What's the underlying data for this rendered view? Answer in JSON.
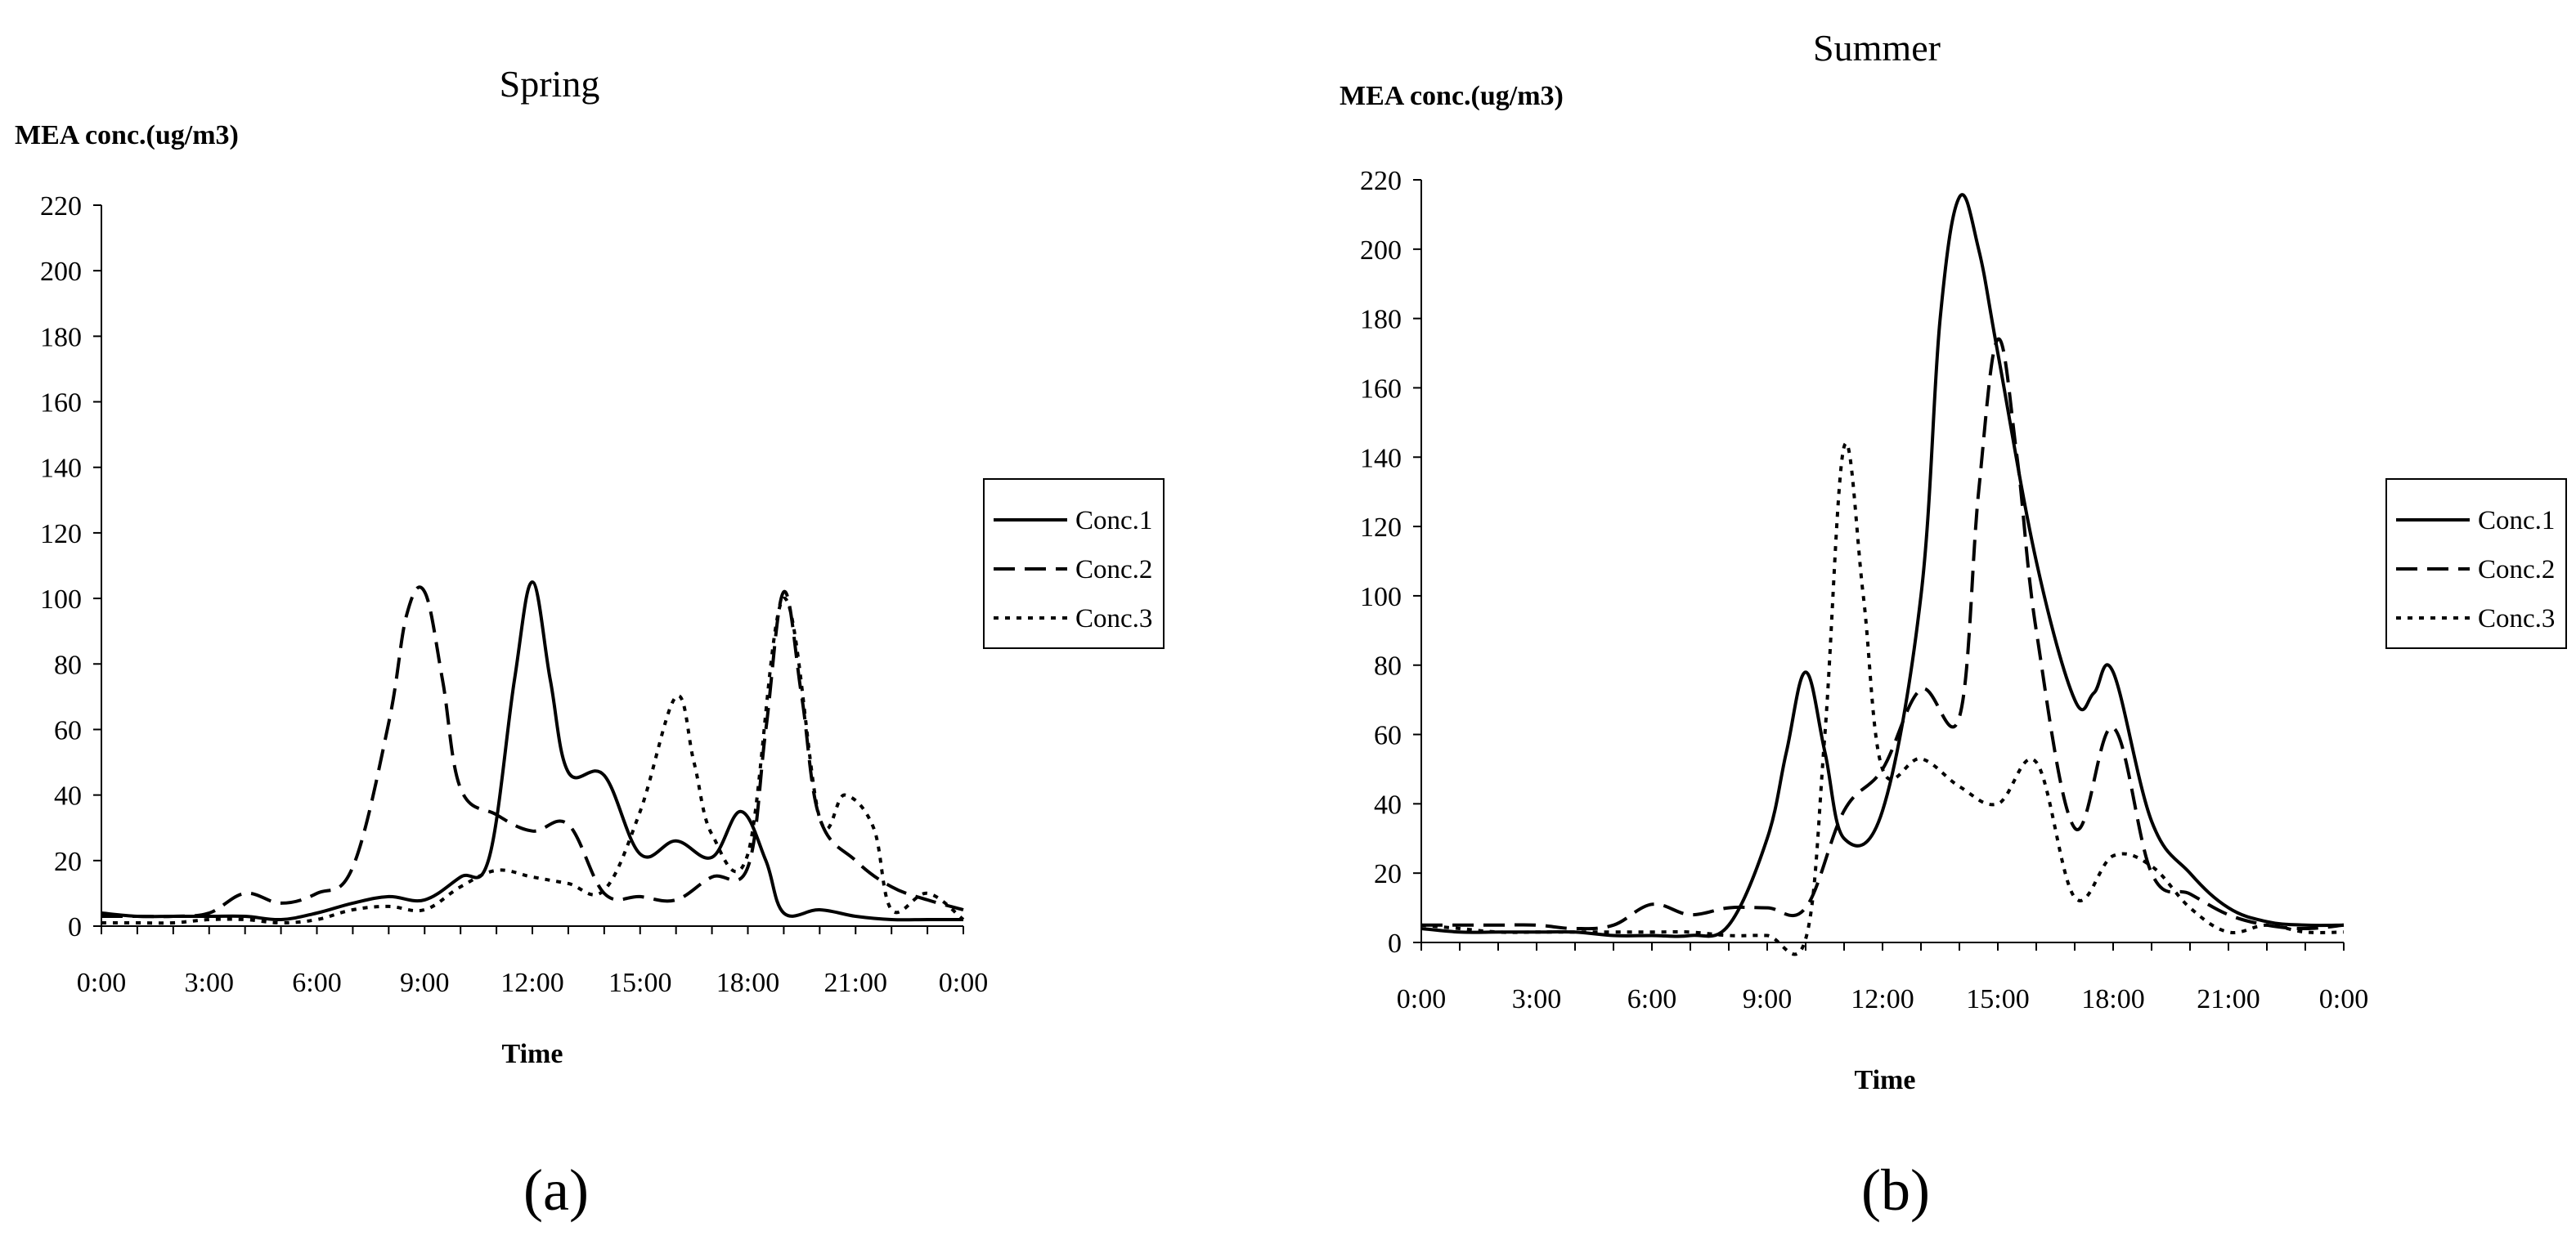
{
  "chart_data": [
    {
      "type": "line",
      "panel_label": "(a)",
      "title": "Spring",
      "ylabel": "MEA conc.(ug/m3)",
      "xlabel": "Time",
      "ylim": [
        0,
        220
      ],
      "y_ticks": [
        0,
        20,
        40,
        60,
        80,
        100,
        120,
        140,
        160,
        180,
        200,
        220
      ],
      "x_range": [
        0,
        24
      ],
      "x_ticks": [
        {
          "value": 0,
          "label": "0:00"
        },
        {
          "value": 3,
          "label": "3:00"
        },
        {
          "value": 6,
          "label": "6:00"
        },
        {
          "value": 9,
          "label": "9:00"
        },
        {
          "value": 12,
          "label": "12:00"
        },
        {
          "value": 15,
          "label": "15:00"
        },
        {
          "value": 18,
          "label": "18:00"
        },
        {
          "value": 21,
          "label": "21:00"
        },
        {
          "value": 24,
          "label": "0:00"
        }
      ],
      "legend": "right",
      "series": [
        {
          "name": "Conc.1",
          "style": "solid",
          "x": [
            0,
            1,
            2,
            3,
            4,
            5,
            6,
            7,
            8,
            9,
            10,
            10.8,
            11.5,
            12,
            12.5,
            13,
            14,
            15,
            16,
            17,
            17.8,
            18.5,
            19,
            20,
            21,
            22,
            23,
            24
          ],
          "y": [
            4,
            3,
            3,
            3,
            3,
            2,
            4,
            7,
            9,
            8,
            15,
            21,
            75,
            105,
            75,
            47,
            46,
            22,
            26,
            21,
            35,
            20,
            4,
            5,
            3,
            2,
            2,
            2
          ]
        },
        {
          "name": "Conc.2",
          "style": "dashed",
          "x": [
            0,
            1,
            2,
            3,
            4,
            5,
            6,
            7,
            8,
            8.5,
            9,
            9.5,
            10,
            11,
            12,
            13,
            14,
            15,
            16,
            17,
            18,
            18.5,
            19,
            19.5,
            20,
            21,
            22,
            23,
            24
          ],
          "y": [
            3,
            3,
            3,
            4,
            10,
            7,
            10,
            18,
            62,
            95,
            102,
            75,
            42,
            34,
            29,
            31,
            10,
            9,
            8,
            15,
            18,
            60,
            102,
            70,
            33,
            20,
            12,
            8,
            5
          ]
        },
        {
          "name": "Conc.3",
          "style": "dotted",
          "x": [
            0,
            1,
            2,
            3,
            4,
            5,
            6,
            7,
            8,
            9,
            10,
            11,
            12,
            13,
            14,
            15,
            16,
            16.5,
            17,
            18,
            19,
            20,
            20.7,
            21.5,
            22,
            23,
            24
          ],
          "y": [
            1,
            1,
            1,
            2,
            2,
            1,
            2,
            5,
            6,
            5,
            12,
            17,
            15,
            13,
            11,
            35,
            70,
            50,
            28,
            22,
            100,
            33,
            40,
            30,
            5,
            10,
            2
          ]
        }
      ]
    },
    {
      "type": "line",
      "panel_label": "(b)",
      "title": "Summer",
      "ylabel": "MEA conc.(ug/m3)",
      "xlabel": "Time",
      "ylim": [
        0,
        220
      ],
      "y_ticks": [
        0,
        20,
        40,
        60,
        80,
        100,
        120,
        140,
        160,
        180,
        200,
        220
      ],
      "x_range": [
        0,
        24
      ],
      "x_ticks": [
        {
          "value": 0,
          "label": "0:00"
        },
        {
          "value": 3,
          "label": "3:00"
        },
        {
          "value": 6,
          "label": "6:00"
        },
        {
          "value": 9,
          "label": "9:00"
        },
        {
          "value": 12,
          "label": "12:00"
        },
        {
          "value": 15,
          "label": "15:00"
        },
        {
          "value": 18,
          "label": "18:00"
        },
        {
          "value": 21,
          "label": "21:00"
        },
        {
          "value": 24,
          "label": "0:00"
        }
      ],
      "legend": "right",
      "series": [
        {
          "name": "Conc.1",
          "style": "solid",
          "x": [
            0,
            1,
            2,
            3,
            4,
            5,
            6,
            7,
            8,
            9,
            9.5,
            10,
            10.5,
            11,
            12,
            13,
            13.5,
            14,
            14.5,
            15,
            16,
            17,
            17.5,
            18,
            19,
            20,
            21,
            22,
            23,
            24
          ],
          "y": [
            4,
            3,
            3,
            3,
            3,
            2,
            2,
            2,
            5,
            30,
            55,
            78,
            55,
            30,
            38,
            100,
            180,
            215,
            200,
            170,
            110,
            70,
            72,
            78,
            35,
            20,
            10,
            6,
            5,
            5
          ]
        },
        {
          "name": "Conc.2",
          "style": "dashed",
          "x": [
            0,
            1,
            2,
            3,
            4,
            5,
            6,
            7,
            8,
            9,
            10,
            11,
            12,
            13,
            14,
            14.5,
            15,
            15.5,
            16,
            17,
            18,
            19,
            20,
            21,
            22,
            23,
            24
          ],
          "y": [
            5,
            5,
            5,
            5,
            4,
            5,
            11,
            8,
            10,
            10,
            10,
            38,
            50,
            73,
            65,
            130,
            174,
            140,
            90,
            33,
            62,
            20,
            14,
            8,
            5,
            4,
            5
          ]
        },
        {
          "name": "Conc.3",
          "style": "dotted",
          "x": [
            0,
            1,
            2,
            3,
            4,
            5,
            6,
            7,
            8,
            9,
            10,
            10.5,
            11,
            11.5,
            12,
            13,
            14,
            15,
            16,
            17,
            18,
            19,
            20,
            21,
            22,
            23,
            24
          ],
          "y": [
            5,
            4,
            3,
            3,
            3,
            3,
            3,
            3,
            2,
            2,
            1,
            60,
            143,
            100,
            50,
            53,
            45,
            40,
            52,
            13,
            25,
            22,
            10,
            3,
            5,
            3,
            3
          ]
        }
      ]
    }
  ]
}
